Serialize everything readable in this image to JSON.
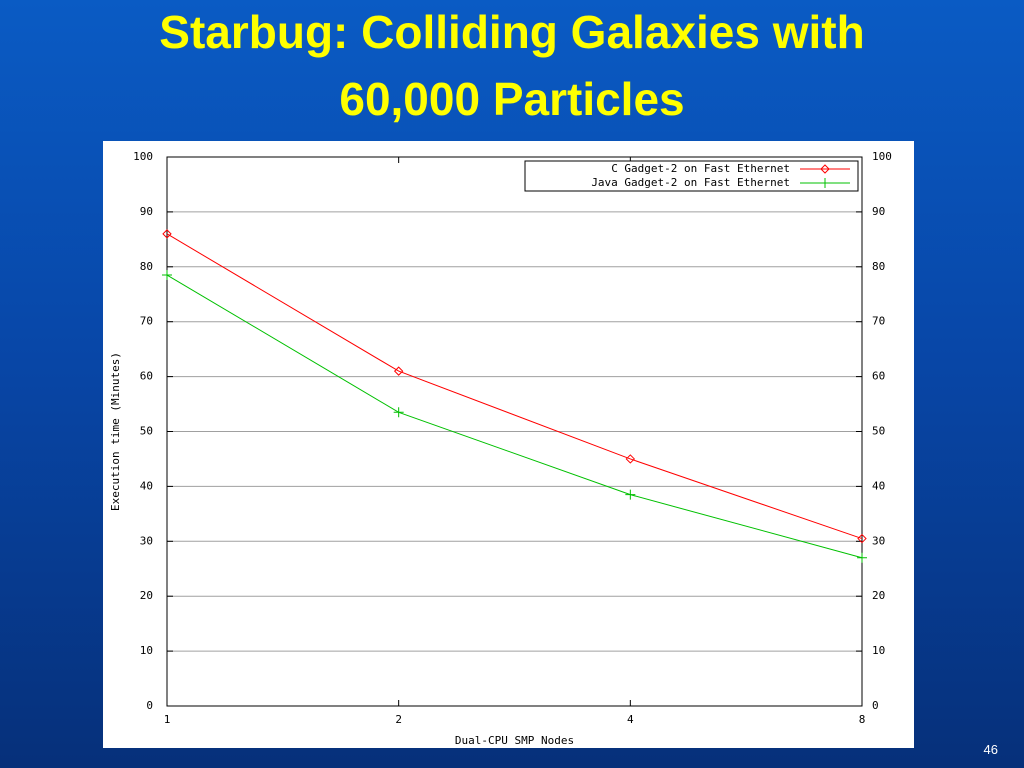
{
  "title_lines": [
    "Starbug: Colliding Galaxies with",
    "60,000 Particles"
  ],
  "page_number": "46",
  "chart_data": {
    "type": "line",
    "xlabel": "Dual-CPU SMP Nodes",
    "ylabel": "Execution time (Minutes)",
    "categories": [
      "1",
      "2",
      "4",
      "8"
    ],
    "series": [
      {
        "name": "C Gadget-2 on Fast Ethernet",
        "color": "#ff0000",
        "marker": "diamond",
        "values": [
          86,
          61,
          45,
          30.5
        ]
      },
      {
        "name": "Java Gadget-2 on Fast Ethernet",
        "color": "#00c000",
        "marker": "plus",
        "values": [
          78.5,
          53.5,
          38.5,
          27
        ]
      }
    ],
    "ylim": [
      0,
      100
    ],
    "yticks": [
      0,
      10,
      20,
      30,
      40,
      50,
      60,
      70,
      80,
      90,
      100
    ],
    "y2lim": [
      0,
      100
    ],
    "y2ticks": [
      0,
      10,
      20,
      30,
      40,
      50,
      60,
      70,
      80,
      90,
      100
    ],
    "grid": true,
    "legend": "upper right"
  }
}
